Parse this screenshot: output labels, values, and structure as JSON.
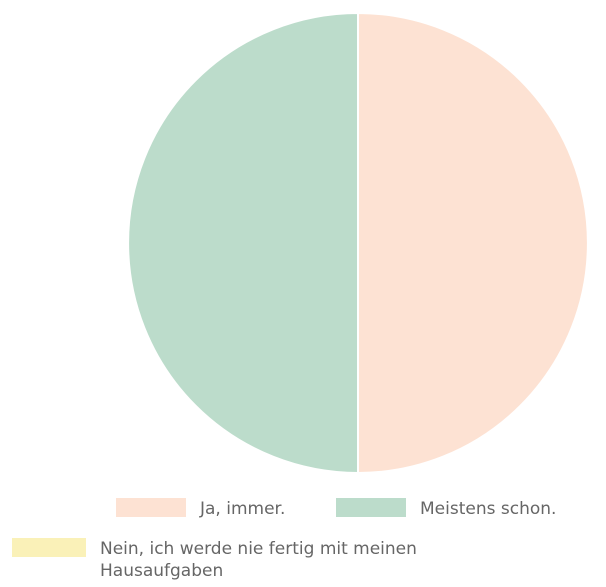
{
  "chart_data": {
    "type": "pie",
    "title": "",
    "categories": [
      "Ja, immer.",
      "Meistens schon.",
      "Nein, ich werde nie fertig mit meinen Hausaufgaben"
    ],
    "values": [
      50,
      50,
      0
    ],
    "colors": [
      "#fde2d3",
      "#bcdccb",
      "#faf1b8"
    ],
    "legend_position": "bottom",
    "slice_border_color": "#ffffff"
  }
}
